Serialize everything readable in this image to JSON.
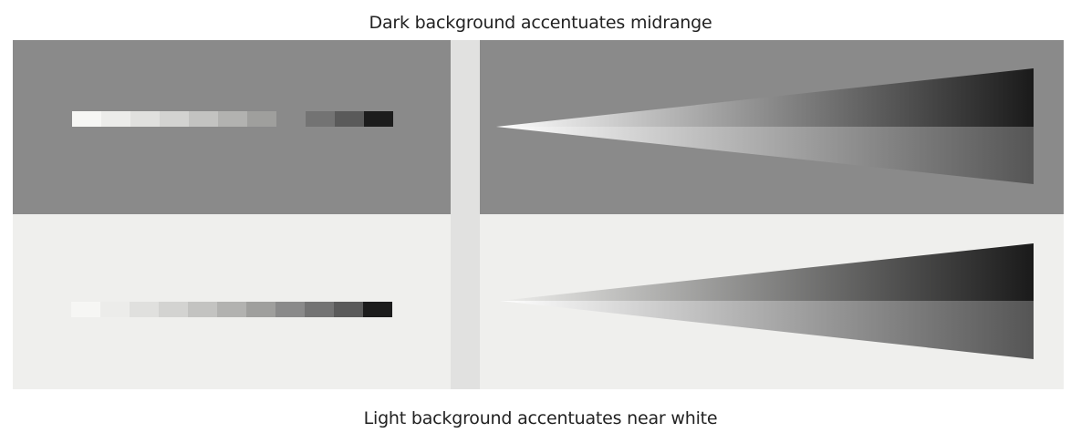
{
  "captions": {
    "top": "Dark background accentuates midrange",
    "bottom": "Light background accentuates near white"
  },
  "colors": {
    "dark_background": "#8a8a8a",
    "light_background": "#efefed",
    "divider": "#e1e1e0",
    "caption_text": "#222222",
    "wedge_light": "#ffffff",
    "wedge_dark": "#1a1a1a"
  },
  "grayscale_steps": [
    "#f6f6f4",
    "#ececea",
    "#e0e0de",
    "#d3d3d1",
    "#c3c3c1",
    "#b2b2b0",
    "#9f9f9d",
    "#8a8a8a",
    "#737373",
    "#5a5a5a",
    "#1c1c1c"
  ],
  "wedge_lower_tip_color": "#555555"
}
